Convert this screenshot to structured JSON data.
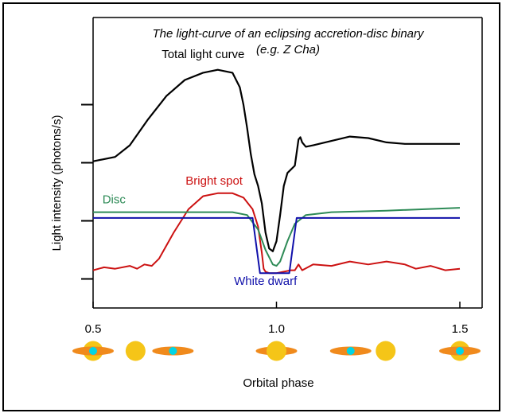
{
  "chart_data": {
    "type": "line",
    "title": "The light-curve of an eclipsing accretion-disc binary",
    "subtitle": "(e.g. Z Cha)",
    "xlabel": "Orbital phase",
    "ylabel": "Light intensity (photons/s)",
    "xlim": [
      0.5,
      1.5
    ],
    "ylim": [
      0,
      10
    ],
    "x_ticks": [
      "0.5",
      "1.0",
      "1.5"
    ],
    "y_ticks": [
      1,
      3,
      5,
      7
    ],
    "grid": false,
    "series": [
      {
        "name": "Total light curve",
        "color": "#000000",
        "x": [
          0.5,
          0.56,
          0.6,
          0.65,
          0.7,
          0.75,
          0.8,
          0.84,
          0.88,
          0.9,
          0.91,
          0.92,
          0.93,
          0.94,
          0.95,
          0.96,
          0.97,
          0.98,
          0.99,
          1.0,
          1.01,
          1.02,
          1.03,
          1.05,
          1.06,
          1.065,
          1.07,
          1.08,
          1.1,
          1.15,
          1.2,
          1.25,
          1.3,
          1.35,
          1.4,
          1.5
        ],
        "y": [
          5.05,
          5.2,
          5.6,
          6.5,
          7.3,
          7.85,
          8.1,
          8.2,
          8.1,
          7.6,
          7.0,
          6.2,
          5.3,
          4.6,
          4.2,
          3.6,
          2.6,
          2.05,
          1.95,
          2.3,
          3.2,
          4.2,
          4.65,
          4.9,
          5.8,
          5.88,
          5.7,
          5.55,
          5.6,
          5.75,
          5.9,
          5.85,
          5.7,
          5.65,
          5.65,
          5.65
        ]
      },
      {
        "name": "Bright spot",
        "color": "#cc1111",
        "x": [
          0.5,
          0.53,
          0.56,
          0.6,
          0.62,
          0.64,
          0.66,
          0.68,
          0.72,
          0.76,
          0.8,
          0.84,
          0.88,
          0.91,
          0.935,
          0.95,
          0.96,
          0.965,
          0.97,
          0.98,
          1.0,
          1.02,
          1.04,
          1.05,
          1.06,
          1.07,
          1.1,
          1.15,
          1.2,
          1.25,
          1.3,
          1.35,
          1.38,
          1.42,
          1.46,
          1.5
        ],
        "y": [
          1.3,
          1.4,
          1.35,
          1.45,
          1.35,
          1.5,
          1.45,
          1.7,
          2.6,
          3.4,
          3.85,
          3.95,
          3.95,
          3.8,
          3.4,
          2.8,
          1.9,
          1.35,
          1.25,
          1.2,
          1.2,
          1.25,
          1.3,
          1.3,
          1.5,
          1.3,
          1.5,
          1.45,
          1.6,
          1.5,
          1.6,
          1.5,
          1.35,
          1.45,
          1.3,
          1.35
        ]
      },
      {
        "name": "Disc",
        "color": "#2e8b57",
        "x": [
          0.5,
          0.6,
          0.7,
          0.8,
          0.88,
          0.92,
          0.95,
          0.97,
          0.99,
          1.0,
          1.01,
          1.03,
          1.05,
          1.08,
          1.15,
          1.3,
          1.5
        ],
        "y": [
          3.3,
          3.3,
          3.3,
          3.3,
          3.3,
          3.2,
          2.7,
          2.0,
          1.5,
          1.45,
          1.6,
          2.3,
          2.9,
          3.2,
          3.3,
          3.35,
          3.45
        ]
      },
      {
        "name": "White dwarf",
        "color": "#1010aa",
        "x": [
          0.5,
          0.935,
          0.955,
          1.035,
          1.055,
          1.5
        ],
        "y": [
          3.1,
          3.1,
          1.2,
          1.2,
          3.1,
          3.1
        ]
      }
    ],
    "annotations": [
      {
        "text": "Total light curve",
        "color": "#000000",
        "x": 0.8,
        "y": 8.6
      },
      {
        "text": "Bright spot",
        "color": "#cc1111",
        "x": 0.83,
        "y": 4.25
      },
      {
        "text": "Disc",
        "color": "#2e8b57",
        "x": 0.557,
        "y": 3.6
      },
      {
        "text": "White dwarf",
        "color": "#1010aa",
        "x": 0.97,
        "y": 0.8
      }
    ],
    "phase_diagrams": [
      {
        "phase": 0.5,
        "arrangement": "disc-front"
      },
      {
        "phase": 0.67,
        "arrangement": "star-left-disc-right"
      },
      {
        "phase": 1.0,
        "arrangement": "star-front"
      },
      {
        "phase": 1.25,
        "arrangement": "disc-left-star-right"
      },
      {
        "phase": 1.5,
        "arrangement": "disc-front"
      }
    ],
    "colors": {
      "star": "#f5c518",
      "disc": "#f08a1c",
      "white_dwarf": "#00d5e6"
    }
  }
}
